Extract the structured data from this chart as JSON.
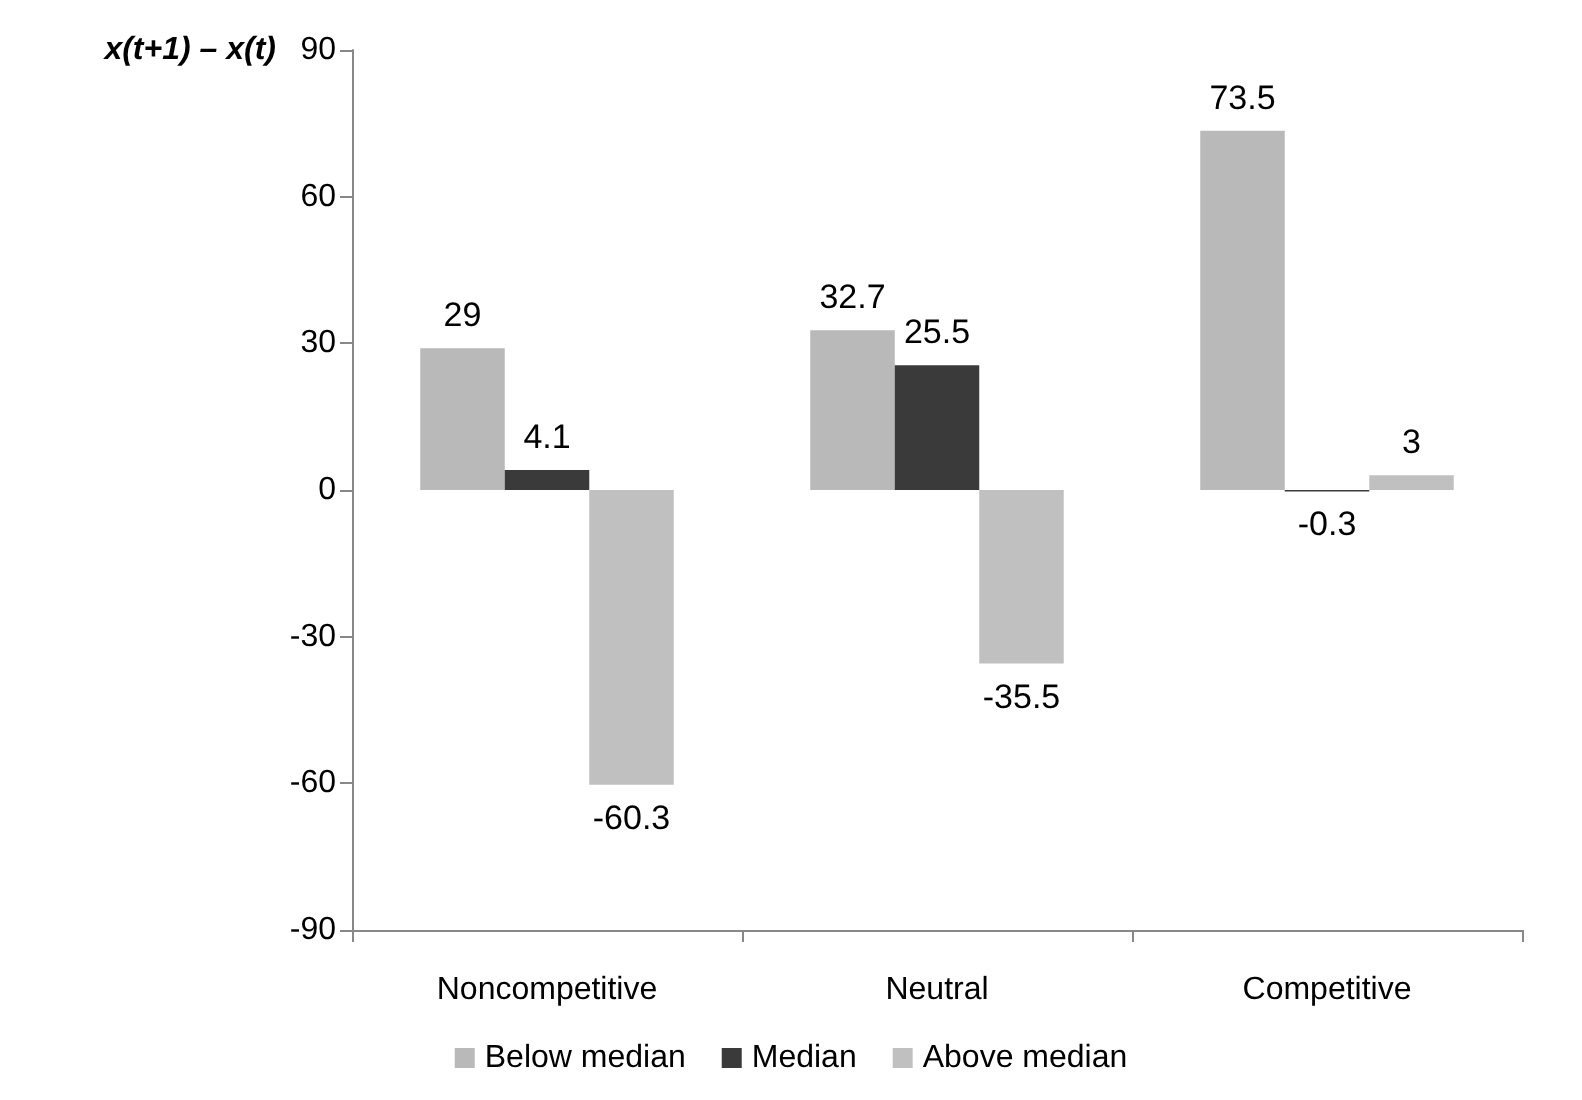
{
  "chart_data": {
    "type": "bar",
    "ylabel": "x(t+1) – x(t)",
    "categories": [
      "Noncompetitive",
      "Neutral",
      "Competitive"
    ],
    "series": [
      {
        "name": "Below median",
        "color": "#b9b9b9",
        "values": [
          29,
          32.7,
          73.5
        ]
      },
      {
        "name": "Median",
        "color": "#3a3a3a",
        "values": [
          4.1,
          25.5,
          -0.3
        ]
      },
      {
        "name": "Above median",
        "color": "#c0c0c0",
        "values": [
          -60.3,
          -35.5,
          3
        ]
      }
    ],
    "ylim": [
      -90,
      90
    ],
    "yticks": [
      -90,
      -60,
      -30,
      0,
      30,
      60,
      90
    ],
    "grid": false,
    "legend": "bottom",
    "data_labels": true
  }
}
